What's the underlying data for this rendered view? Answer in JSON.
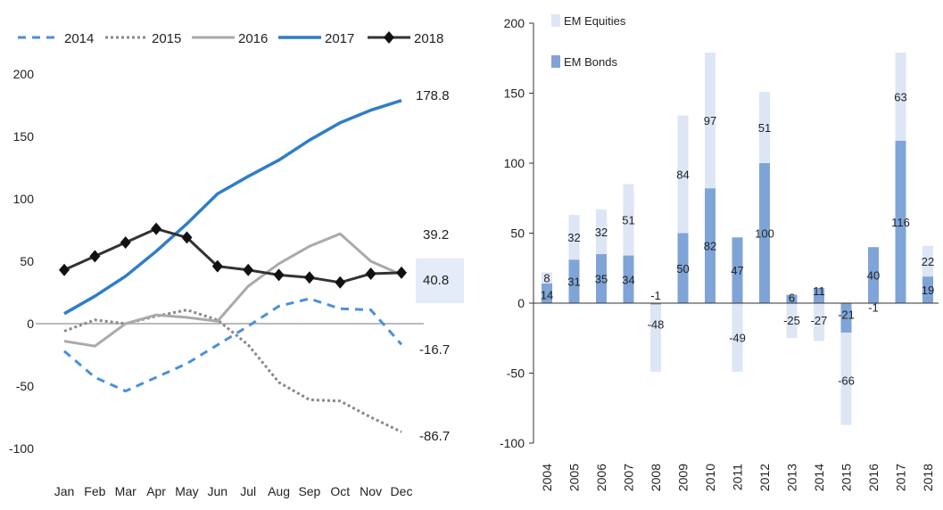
{
  "colors": {
    "s2014": "#4a90d9",
    "s2015": "#888888",
    "s2016": "#aaaaaa",
    "s2017": "#2f7ec7",
    "s2018": "#333333",
    "equities": "#dde6f5",
    "bonds": "#7fa4d8",
    "zero": "#bbbbbb",
    "highlight": "#e3ecf8"
  },
  "chart_data": [
    {
      "type": "line",
      "title": "",
      "xlabel": "",
      "ylabel": "",
      "categories": [
        "Jan",
        "Feb",
        "Mar",
        "Apr",
        "May",
        "Jun",
        "Jul",
        "Aug",
        "Sep",
        "Oct",
        "Nov",
        "Dec"
      ],
      "ylim": [
        -100,
        200
      ],
      "yticks": [
        "200",
        "150",
        "100",
        "50",
        "0",
        "-50",
        "-100"
      ],
      "legend": "top",
      "series": [
        {
          "name": "2014",
          "values": [
            -22,
            -43,
            -54,
            -43,
            -32,
            -17,
            -2,
            14,
            20,
            12,
            11,
            -16.7
          ]
        },
        {
          "name": "2015",
          "values": [
            -6,
            3,
            0,
            6,
            11,
            3,
            -17,
            -47,
            -61,
            -62,
            -75,
            -86.7
          ]
        },
        {
          "name": "2016",
          "values": [
            -14,
            -18,
            0,
            7,
            5,
            2,
            30,
            48,
            62,
            72,
            50,
            39.2
          ]
        },
        {
          "name": "2017",
          "values": [
            8,
            22,
            38,
            58,
            80,
            104,
            118,
            131,
            147,
            161,
            171,
            178.8
          ]
        },
        {
          "name": "2018",
          "values": [
            43,
            54,
            65,
            76,
            69,
            46,
            43,
            39,
            37,
            33,
            40,
            40.8
          ]
        }
      ],
      "end_labels": [
        "178.8",
        "39.2",
        "40.8",
        "-16.7",
        "-86.7"
      ]
    },
    {
      "type": "bar",
      "title": "",
      "xlabel": "",
      "ylabel": "",
      "categories": [
        "2004",
        "2005",
        "2006",
        "2007",
        "2008",
        "2009",
        "2010",
        "2011",
        "2012",
        "2013",
        "2014",
        "2015",
        "2016",
        "2017",
        "2018"
      ],
      "ylim": [
        -100,
        200
      ],
      "yticks": [
        "200",
        "150",
        "100",
        "50",
        "0",
        "-50",
        "-100"
      ],
      "legend": "top-left",
      "series": [
        {
          "name": "EM Equities",
          "values": [
            8,
            32,
            32,
            51,
            -48,
            84,
            97,
            -49,
            51,
            -25,
            -27,
            -66,
            -1,
            63,
            22
          ]
        },
        {
          "name": "EM Bonds",
          "values": [
            14,
            31,
            35,
            34,
            -1,
            50,
            82,
            47,
            100,
            6,
            11,
            -21,
            40,
            116,
            19
          ]
        }
      ],
      "labels": {
        "equities": [
          "8",
          "32",
          "32",
          "51",
          "-48",
          "84",
          "97",
          "-49",
          "51",
          "-25",
          "-27",
          "-66",
          "-1",
          "63",
          "22"
        ],
        "bonds": [
          "14",
          "31",
          "35",
          "34",
          "-1",
          "50",
          "82",
          "47",
          "100",
          "6",
          "11",
          "-21",
          "40",
          "116",
          "19"
        ]
      }
    }
  ]
}
